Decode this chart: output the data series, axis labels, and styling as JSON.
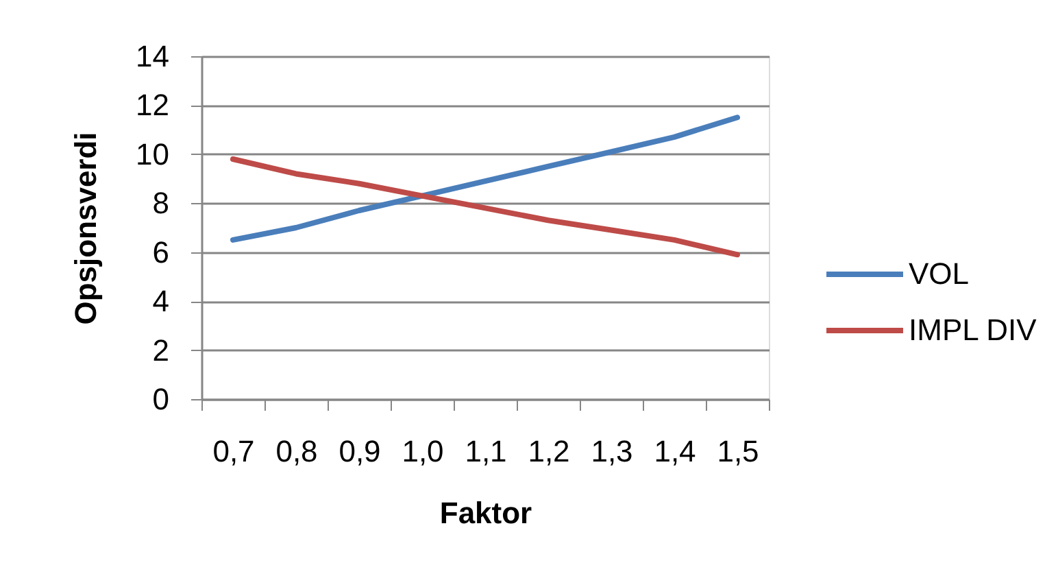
{
  "chart_data": {
    "type": "line",
    "xlabel": "Faktor",
    "ylabel": "Opsjonsverdi",
    "categories": [
      "0,7",
      "0,8",
      "0,9",
      "1,0",
      "1,1",
      "1,2",
      "1,3",
      "1,4",
      "1,5"
    ],
    "series": [
      {
        "name": "VOL",
        "color": "#4a7ebb",
        "values": [
          6.5,
          7.0,
          7.7,
          8.3,
          8.9,
          9.5,
          10.1,
          10.7,
          11.5
        ]
      },
      {
        "name": "IMPL DIV",
        "color": "#be4b48",
        "values": [
          9.8,
          9.2,
          8.8,
          8.3,
          7.8,
          7.3,
          6.9,
          6.5,
          5.9
        ]
      }
    ],
    "ylim": [
      0,
      14
    ],
    "yticks": [
      0,
      2,
      4,
      6,
      8,
      10,
      12,
      14
    ],
    "grid": "y",
    "legend": "right",
    "marker": "none",
    "line_style": "solid"
  }
}
